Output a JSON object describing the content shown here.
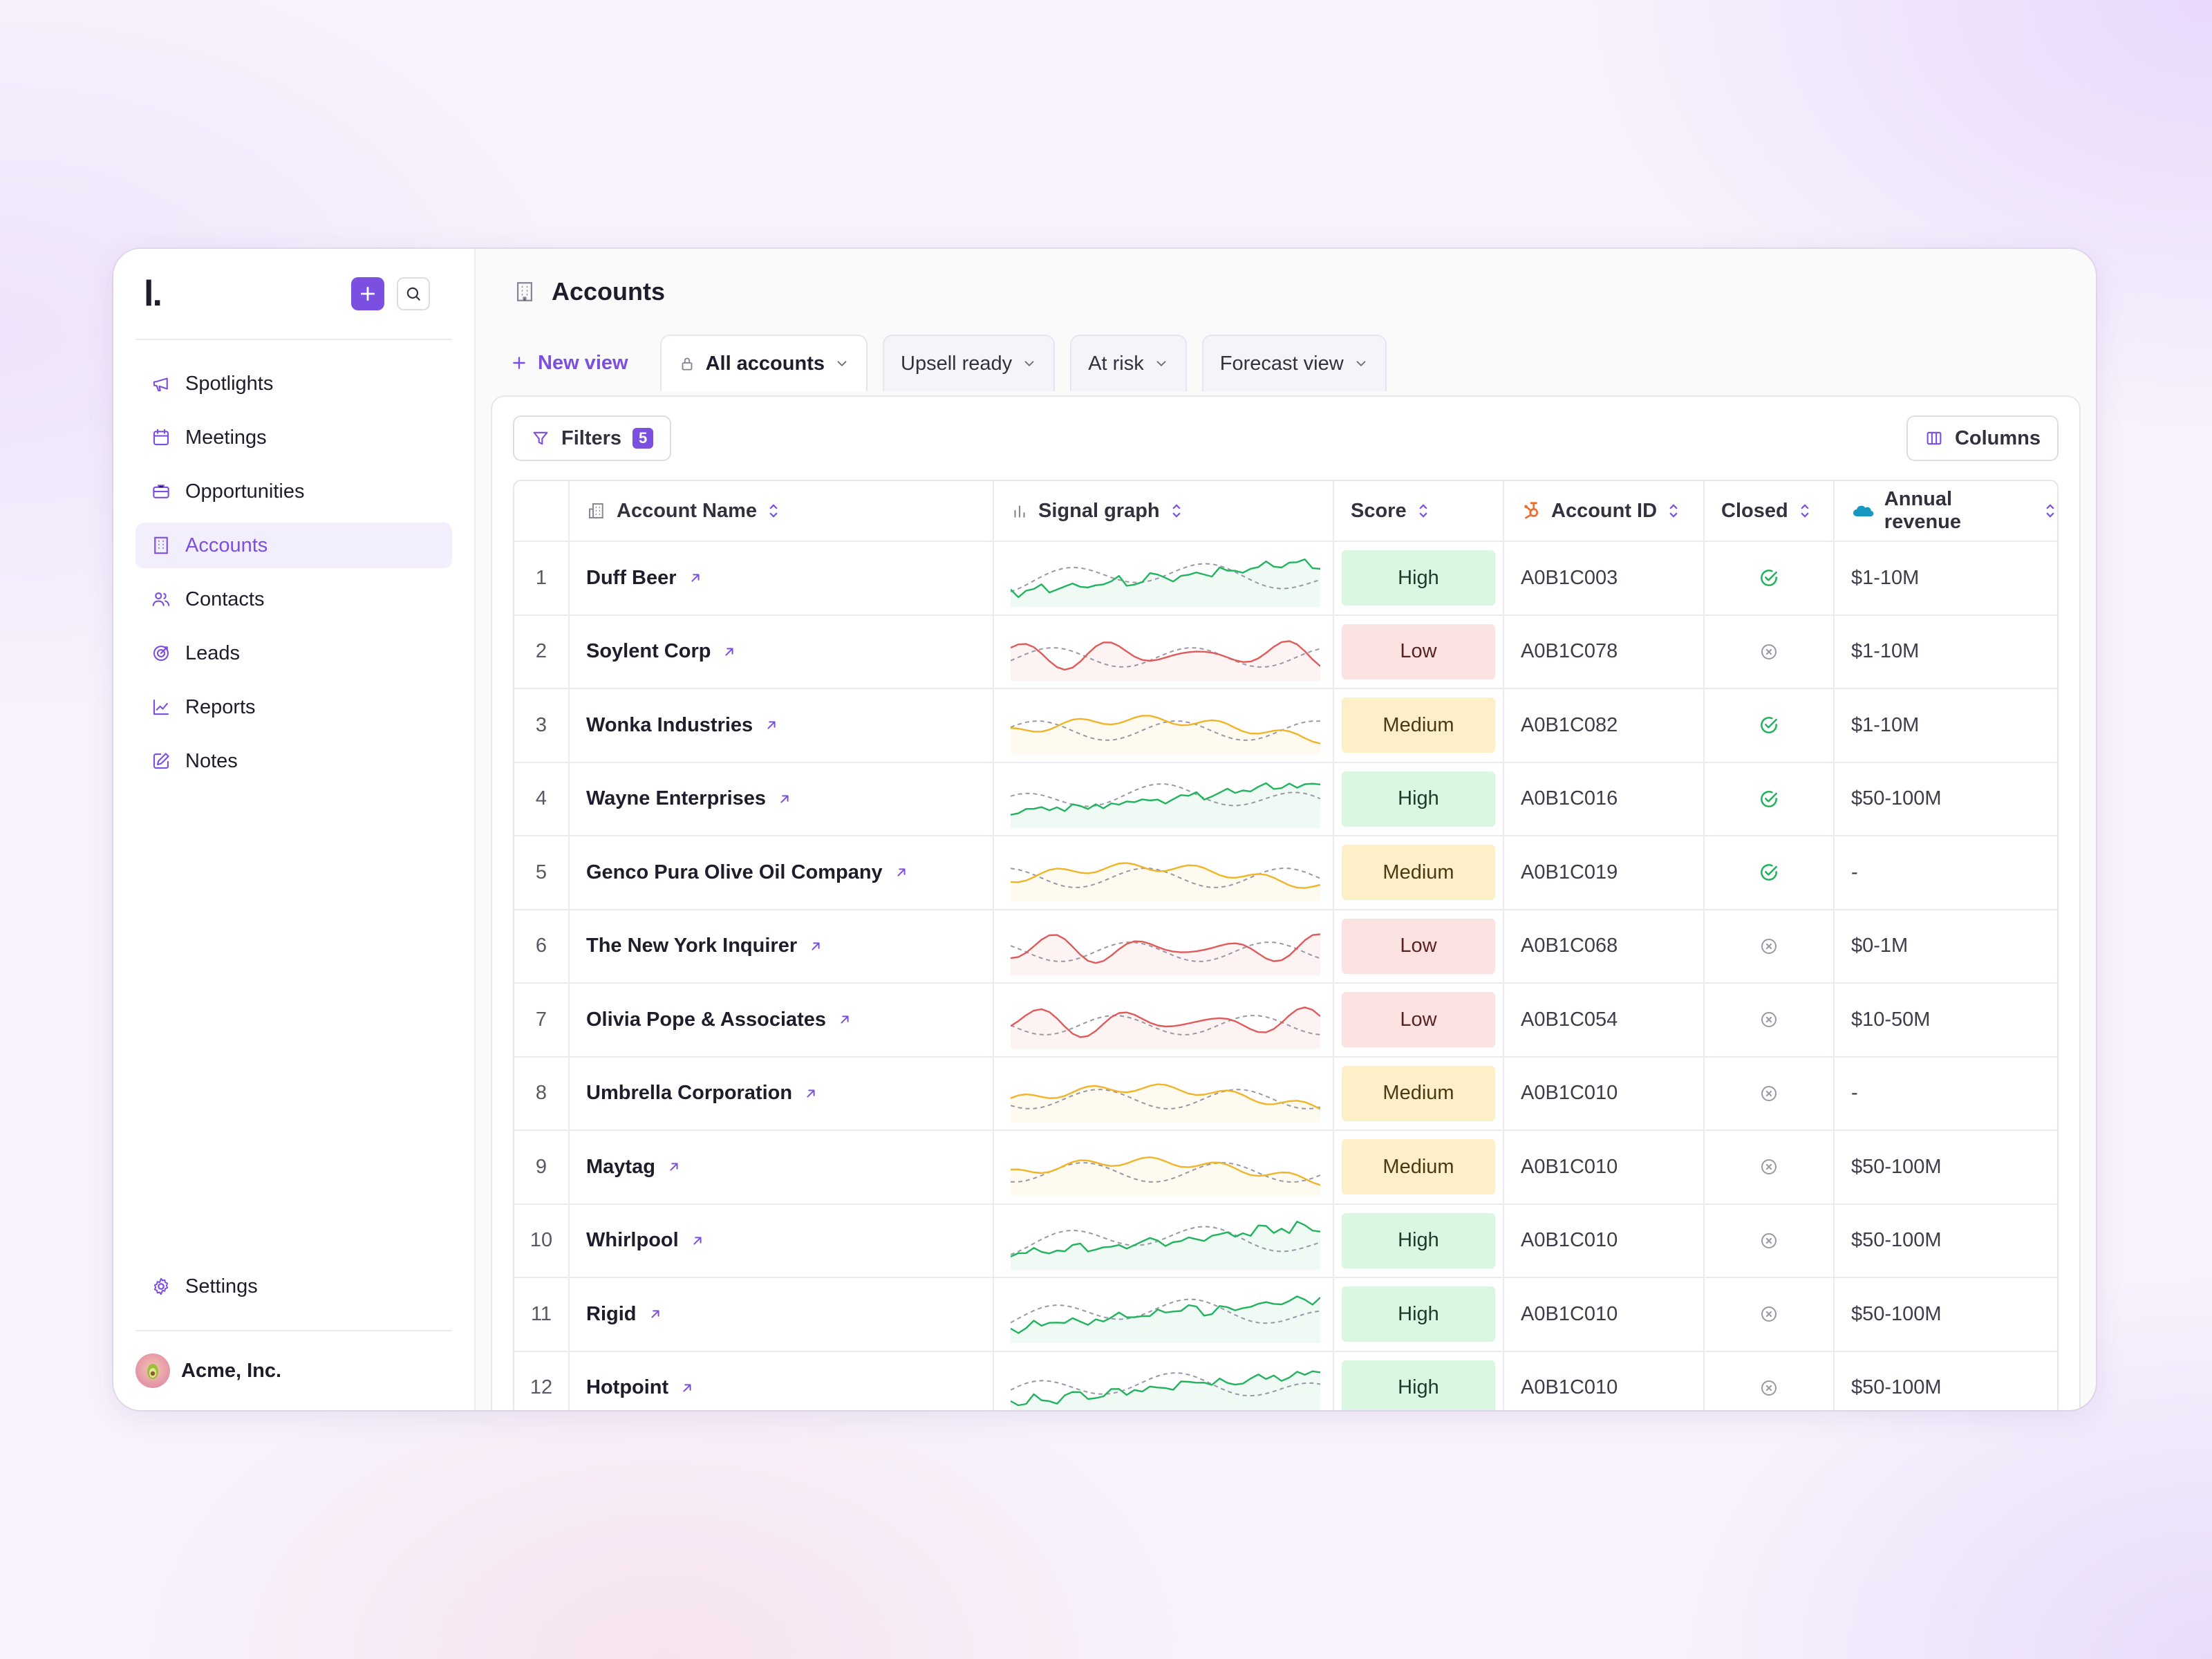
{
  "sidebar": {
    "logo": "l.",
    "nav": [
      {
        "label": "Spotlights",
        "icon": "megaphone-icon"
      },
      {
        "label": "Meetings",
        "icon": "calendar-icon"
      },
      {
        "label": "Opportunities",
        "icon": "briefcase-icon"
      },
      {
        "label": "Accounts",
        "icon": "building-icon",
        "active": true
      },
      {
        "label": "Contacts",
        "icon": "users-icon"
      },
      {
        "label": "Leads",
        "icon": "target-icon"
      },
      {
        "label": "Reports",
        "icon": "trend-chart-icon"
      },
      {
        "label": "Notes",
        "icon": "edit-note-icon"
      }
    ],
    "settings_label": "Settings",
    "org_name": "Acme, Inc."
  },
  "header": {
    "title": "Accounts"
  },
  "views": {
    "new_view_label": "New view",
    "tabs": [
      {
        "label": "All accounts",
        "locked": true,
        "active": true
      },
      {
        "label": "Upsell ready"
      },
      {
        "label": "At risk"
      },
      {
        "label": "Forecast view"
      }
    ]
  },
  "toolbar": {
    "filters_label": "Filters",
    "filters_count": "5",
    "columns_label": "Columns"
  },
  "table": {
    "headers": {
      "name": "Account Name",
      "signal": "Signal graph",
      "score": "Score",
      "account_id": "Account ID",
      "closed": "Closed",
      "revenue": "Annual revenue"
    },
    "rows": [
      {
        "num": "1",
        "name": "Duff Beer",
        "score": "High",
        "account_id": "A0B1C003",
        "closed": true,
        "revenue": "$1-10M"
      },
      {
        "num": "2",
        "name": "Soylent Corp",
        "score": "Low",
        "account_id": "A0B1C078",
        "closed": false,
        "revenue": "$1-10M"
      },
      {
        "num": "3",
        "name": "Wonka Industries",
        "score": "Medium",
        "account_id": "A0B1C082",
        "closed": true,
        "revenue": "$1-10M"
      },
      {
        "num": "4",
        "name": "Wayne Enterprises",
        "score": "High",
        "account_id": "A0B1C016",
        "closed": true,
        "revenue": "$50-100M"
      },
      {
        "num": "5",
        "name": "Genco Pura Olive Oil Company",
        "score": "Medium",
        "account_id": "A0B1C019",
        "closed": true,
        "revenue": "-"
      },
      {
        "num": "6",
        "name": "The New York Inquirer",
        "score": "Low",
        "account_id": "A0B1C068",
        "closed": false,
        "revenue": "$0-1M"
      },
      {
        "num": "7",
        "name": "Olivia Pope & Associates",
        "score": "Low",
        "account_id": "A0B1C054",
        "closed": false,
        "revenue": "$10-50M"
      },
      {
        "num": "8",
        "name": "Umbrella Corporation",
        "score": "Medium",
        "account_id": "A0B1C010",
        "closed": false,
        "revenue": "-"
      },
      {
        "num": "9",
        "name": "Maytag",
        "score": "Medium",
        "account_id": "A0B1C010",
        "closed": false,
        "revenue": "$50-100M"
      },
      {
        "num": "10",
        "name": "Whirlpool",
        "score": "High",
        "account_id": "A0B1C010",
        "closed": false,
        "revenue": "$50-100M"
      },
      {
        "num": "11",
        "name": "Rigid",
        "score": "High",
        "account_id": "A0B1C010",
        "closed": false,
        "revenue": "$50-100M"
      },
      {
        "num": "12",
        "name": "Hotpoint",
        "score": "High",
        "account_id": "A0B1C010",
        "closed": false,
        "revenue": "$50-100M"
      }
    ]
  },
  "colors": {
    "accent": "#7b4fe0",
    "high": "#22b35e",
    "low": "#e05a5a",
    "medium": "#f0b429",
    "hubspot": "#f26b2a",
    "salesforce": "#1798c1"
  }
}
